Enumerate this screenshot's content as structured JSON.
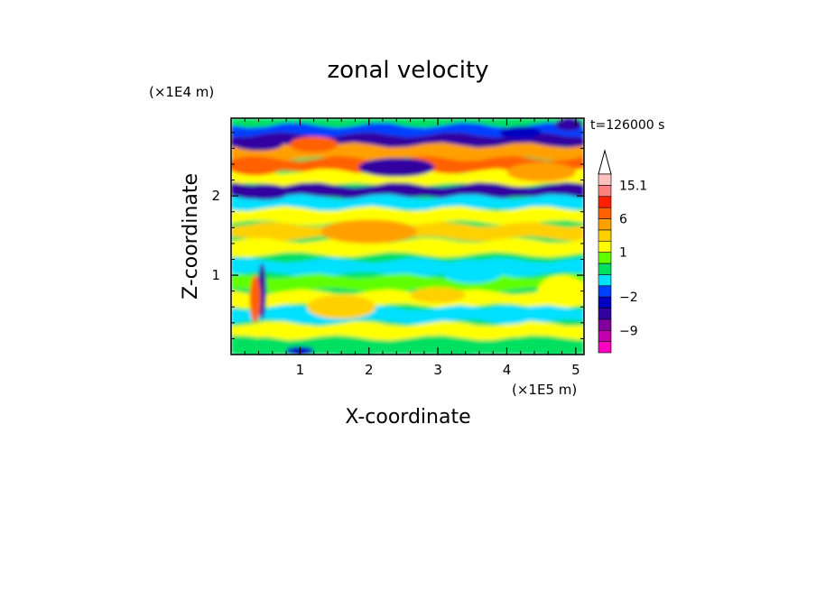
{
  "chart_data": {
    "type": "heatmap",
    "title": "zonal velocity",
    "xlabel": "X-coordinate",
    "ylabel": "Z-coordinate",
    "x_unit": "(×1E5 m)",
    "y_unit": "(×1E4 m)",
    "time_label": "t=126000 s",
    "x_ticks": [
      "1",
      "2",
      "3",
      "4",
      "5"
    ],
    "x_tick_values": [
      1,
      2,
      3,
      4,
      5
    ],
    "y_ticks": [
      "1",
      "2"
    ],
    "y_tick_values": [
      1,
      2
    ],
    "xlim": [
      0,
      5.12
    ],
    "ylim": [
      0,
      2.98
    ],
    "colorbar": {
      "levels": [
        -15,
        -12,
        -9,
        -6,
        -4,
        -2,
        -1,
        0,
        0.5,
        1,
        2,
        4,
        6,
        9,
        12,
        15.1
      ],
      "colors": [
        "#ff00c0",
        "#c000b0",
        "#8000a0",
        "#3000a0",
        "#0000c0",
        "#0040ff",
        "#00e0ff",
        "#00e060",
        "#60ff00",
        "#ffff00",
        "#ffd000",
        "#ffa000",
        "#ff6000",
        "#ff2000",
        "#ff8080",
        "#ffc0c0"
      ],
      "labels": [
        "15.1",
        "6",
        "1",
        "−2",
        "−9"
      ],
      "label_values": [
        15.1,
        6,
        1,
        -2,
        -9
      ]
    },
    "bands": [
      {
        "z": 2.8,
        "v": -2
      },
      {
        "z": 2.68,
        "v": -6
      },
      {
        "z": 2.55,
        "v": 4
      },
      {
        "z": 2.38,
        "v": 6
      },
      {
        "z": 2.22,
        "v": 1
      },
      {
        "z": 2.05,
        "v": -6
      },
      {
        "z": 1.9,
        "v": -1
      },
      {
        "z": 1.75,
        "v": 1
      },
      {
        "z": 1.55,
        "v": 2
      },
      {
        "z": 1.35,
        "v": 1
      },
      {
        "z": 1.1,
        "v": -1
      },
      {
        "z": 0.9,
        "v": 0.5
      },
      {
        "z": 0.7,
        "v": 1
      },
      {
        "z": 0.5,
        "v": -1
      },
      {
        "z": 0.3,
        "v": 1
      },
      {
        "z": 0.1,
        "v": 0
      }
    ],
    "features": [
      {
        "x": 2.4,
        "z": 2.36,
        "rx": 0.55,
        "rz": 0.12,
        "v": -6
      },
      {
        "x": 1.2,
        "z": 2.65,
        "rx": 0.35,
        "rz": 0.1,
        "v": 6
      },
      {
        "x": 0.4,
        "z": 2.65,
        "rx": 0.35,
        "rz": 0.08,
        "v": -6
      },
      {
        "x": 0.35,
        "z": 2.38,
        "rx": 0.4,
        "rz": 0.12,
        "v": 6
      },
      {
        "x": 0.5,
        "z": 2.05,
        "rx": 0.35,
        "rz": 0.1,
        "v": -6
      },
      {
        "x": 4.5,
        "z": 2.3,
        "rx": 0.5,
        "rz": 0.12,
        "v": 4
      },
      {
        "x": 4.2,
        "z": 2.8,
        "rx": 0.3,
        "rz": 0.08,
        "v": -4
      },
      {
        "x": 2.0,
        "z": 1.55,
        "rx": 0.7,
        "rz": 0.15,
        "v": 4
      },
      {
        "x": 3.5,
        "z": 1.05,
        "rx": 0.45,
        "rz": 0.15,
        "v": -1
      },
      {
        "x": 4.8,
        "z": 0.8,
        "rx": 0.35,
        "rz": 0.2,
        "v": 1
      },
      {
        "x": 1.6,
        "z": 0.6,
        "rx": 0.5,
        "rz": 0.15,
        "v": 2
      },
      {
        "x": 3.0,
        "z": 0.75,
        "rx": 0.4,
        "rz": 0.1,
        "v": 2
      },
      {
        "x": 4.0,
        "z": 0.5,
        "rx": 0.4,
        "rz": 0.12,
        "v": -1
      },
      {
        "x": 0.45,
        "z": 0.8,
        "rx": 0.06,
        "rz": 0.35,
        "v": -6
      },
      {
        "x": 0.35,
        "z": 0.7,
        "rx": 0.08,
        "rz": 0.3,
        "v": 6
      },
      {
        "x": 1.0,
        "z": 0.05,
        "rx": 0.2,
        "rz": 0.05,
        "v": -4
      },
      {
        "x": 4.9,
        "z": 2.9,
        "rx": 0.2,
        "rz": 0.08,
        "v": -6
      }
    ]
  }
}
